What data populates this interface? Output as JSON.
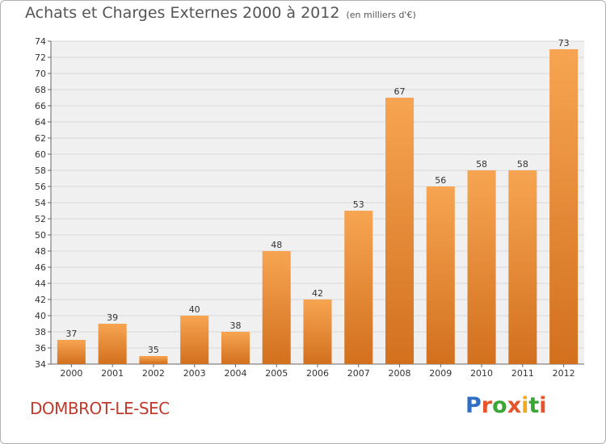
{
  "title": {
    "main": "Achats et Charges Externes 2000 à 2012",
    "unit": "(en milliers d'€)"
  },
  "footer": {
    "city": "DOMBROT-LE-SEC",
    "logo_letters": [
      {
        "ch": "P",
        "color": "#2e6fc4"
      },
      {
        "ch": "r",
        "color": "#e8542a"
      },
      {
        "ch": "o",
        "color": "#3aa635"
      },
      {
        "ch": "x",
        "color": "#e8542a"
      },
      {
        "ch": "i",
        "color": "#f2a81d"
      },
      {
        "ch": "t",
        "color": "#3aa635"
      },
      {
        "ch": "i",
        "color": "#e8542a"
      }
    ]
  },
  "chart_data": {
    "type": "bar",
    "title": "Achats et Charges Externes 2000 à 2012",
    "unit": "(en milliers d'€)",
    "categories": [
      "2000",
      "2001",
      "2002",
      "2003",
      "2004",
      "2005",
      "2006",
      "2007",
      "2008",
      "2009",
      "2010",
      "2011",
      "2012"
    ],
    "values": [
      37,
      39,
      35,
      40,
      38,
      48,
      42,
      53,
      67,
      56,
      58,
      58,
      73
    ],
    "value_labels": [
      "37",
      "39",
      "35",
      "40",
      "38",
      "48",
      "42",
      "53",
      "67",
      "56",
      "58",
      "58",
      "73"
    ],
    "ylim": [
      34,
      74
    ],
    "yticks": [
      "34",
      "36",
      "38",
      "40",
      "42",
      "44",
      "46",
      "48",
      "50",
      "52",
      "54",
      "56",
      "58",
      "60",
      "62",
      "64",
      "66",
      "68",
      "70",
      "72",
      "74"
    ],
    "grid": true,
    "bar_color_top": "#f7a552",
    "bar_color_bottom": "#d2701e"
  }
}
